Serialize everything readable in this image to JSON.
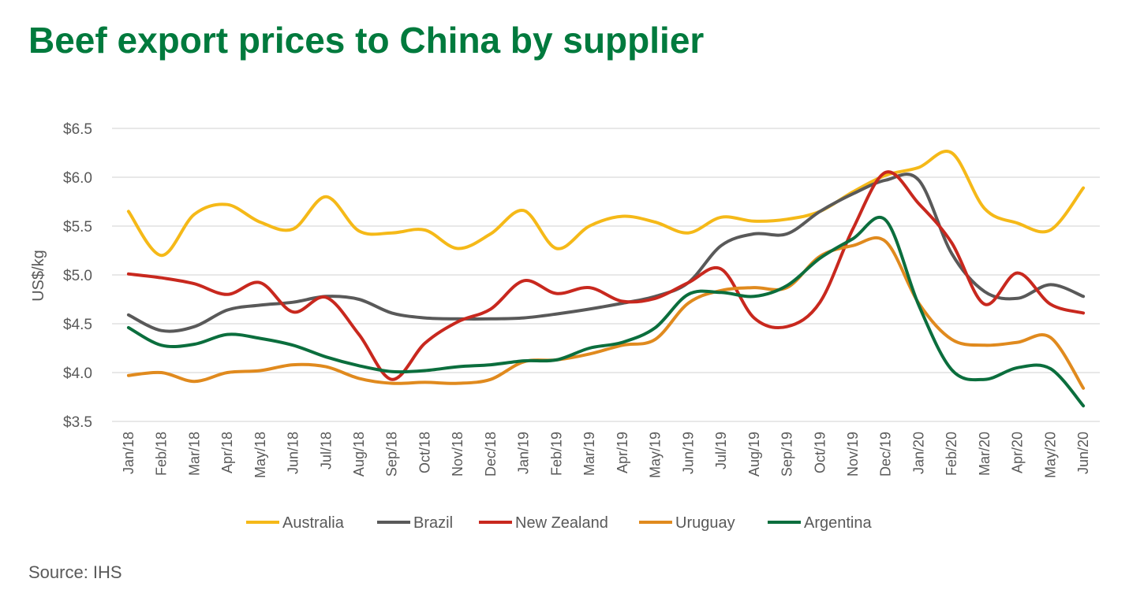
{
  "title": "Beef export prices to China by supplier",
  "source": "Source: IHS",
  "chart_data": {
    "type": "line",
    "title": "Beef export prices to China by supplier",
    "ylabel": "US$/kg",
    "xlabel": "",
    "ylim": [
      3.5,
      6.5
    ],
    "yticks": [
      3.5,
      4.0,
      4.5,
      5.0,
      5.5,
      6.0,
      6.5
    ],
    "ytick_labels": [
      "$3.5",
      "$4.0",
      "$4.5",
      "$5.0",
      "$5.5",
      "$6.0",
      "$6.5"
    ],
    "grid": "horizontal",
    "legend": "bottom",
    "categories": [
      "Jan/18",
      "Feb/18",
      "Mar/18",
      "Apr/18",
      "May/18",
      "Jun/18",
      "Jul/18",
      "Aug/18",
      "Sep/18",
      "Oct/18",
      "Nov/18",
      "Dec/18",
      "Jan/19",
      "Feb/19",
      "Mar/19",
      "Apr/19",
      "May/19",
      "Jun/19",
      "Jul/19",
      "Aug/19",
      "Sep/19",
      "Oct/19",
      "Nov/19",
      "Dec/19",
      "Jan/20",
      "Feb/20",
      "Mar/20",
      "Apr/20",
      "May/20",
      "Jun/20"
    ],
    "series": [
      {
        "name": "Australia",
        "color": "#f5b918",
        "values": [
          5.65,
          5.2,
          5.62,
          5.72,
          5.54,
          5.47,
          5.8,
          5.45,
          5.43,
          5.46,
          5.27,
          5.42,
          5.66,
          5.27,
          5.5,
          5.6,
          5.54,
          5.43,
          5.59,
          5.55,
          5.57,
          5.65,
          5.85,
          6.02,
          6.1,
          6.25,
          5.68,
          5.53,
          5.46,
          5.89
        ]
      },
      {
        "name": "Brazil",
        "color": "#595959",
        "values": [
          4.59,
          4.43,
          4.47,
          4.64,
          4.69,
          4.72,
          4.78,
          4.75,
          4.61,
          4.56,
          4.55,
          4.55,
          4.56,
          4.6,
          4.65,
          4.71,
          4.78,
          4.92,
          5.3,
          5.42,
          5.42,
          5.65,
          5.83,
          5.97,
          5.97,
          5.22,
          4.83,
          4.76,
          4.9,
          4.78
        ]
      },
      {
        "name": "New Zealand",
        "color": "#c8281e",
        "values": [
          5.01,
          4.97,
          4.91,
          4.8,
          4.92,
          4.62,
          4.77,
          4.39,
          3.93,
          4.3,
          4.52,
          4.65,
          4.94,
          4.81,
          4.87,
          4.73,
          4.76,
          4.92,
          5.06,
          4.56,
          4.47,
          4.72,
          5.47,
          6.05,
          5.73,
          5.33,
          4.7,
          5.02,
          4.7,
          4.61
        ]
      },
      {
        "name": "Uruguay",
        "color": "#e08a1e",
        "values": [
          3.97,
          4.0,
          3.91,
          4.0,
          4.02,
          4.08,
          4.06,
          3.94,
          3.89,
          3.9,
          3.89,
          3.93,
          4.11,
          4.13,
          4.19,
          4.28,
          4.34,
          4.71,
          4.84,
          4.87,
          4.87,
          5.19,
          5.3,
          5.34,
          4.71,
          4.34,
          4.28,
          4.31,
          4.36,
          3.84
        ]
      },
      {
        "name": "Argentina",
        "color": "#0b6e3d",
        "values": [
          4.46,
          4.28,
          4.29,
          4.39,
          4.35,
          4.28,
          4.16,
          4.07,
          4.01,
          4.02,
          4.06,
          4.08,
          4.12,
          4.13,
          4.25,
          4.31,
          4.46,
          4.8,
          4.82,
          4.78,
          4.89,
          5.17,
          5.37,
          5.56,
          4.69,
          4.03,
          3.93,
          4.05,
          4.04,
          3.66
        ]
      }
    ]
  }
}
